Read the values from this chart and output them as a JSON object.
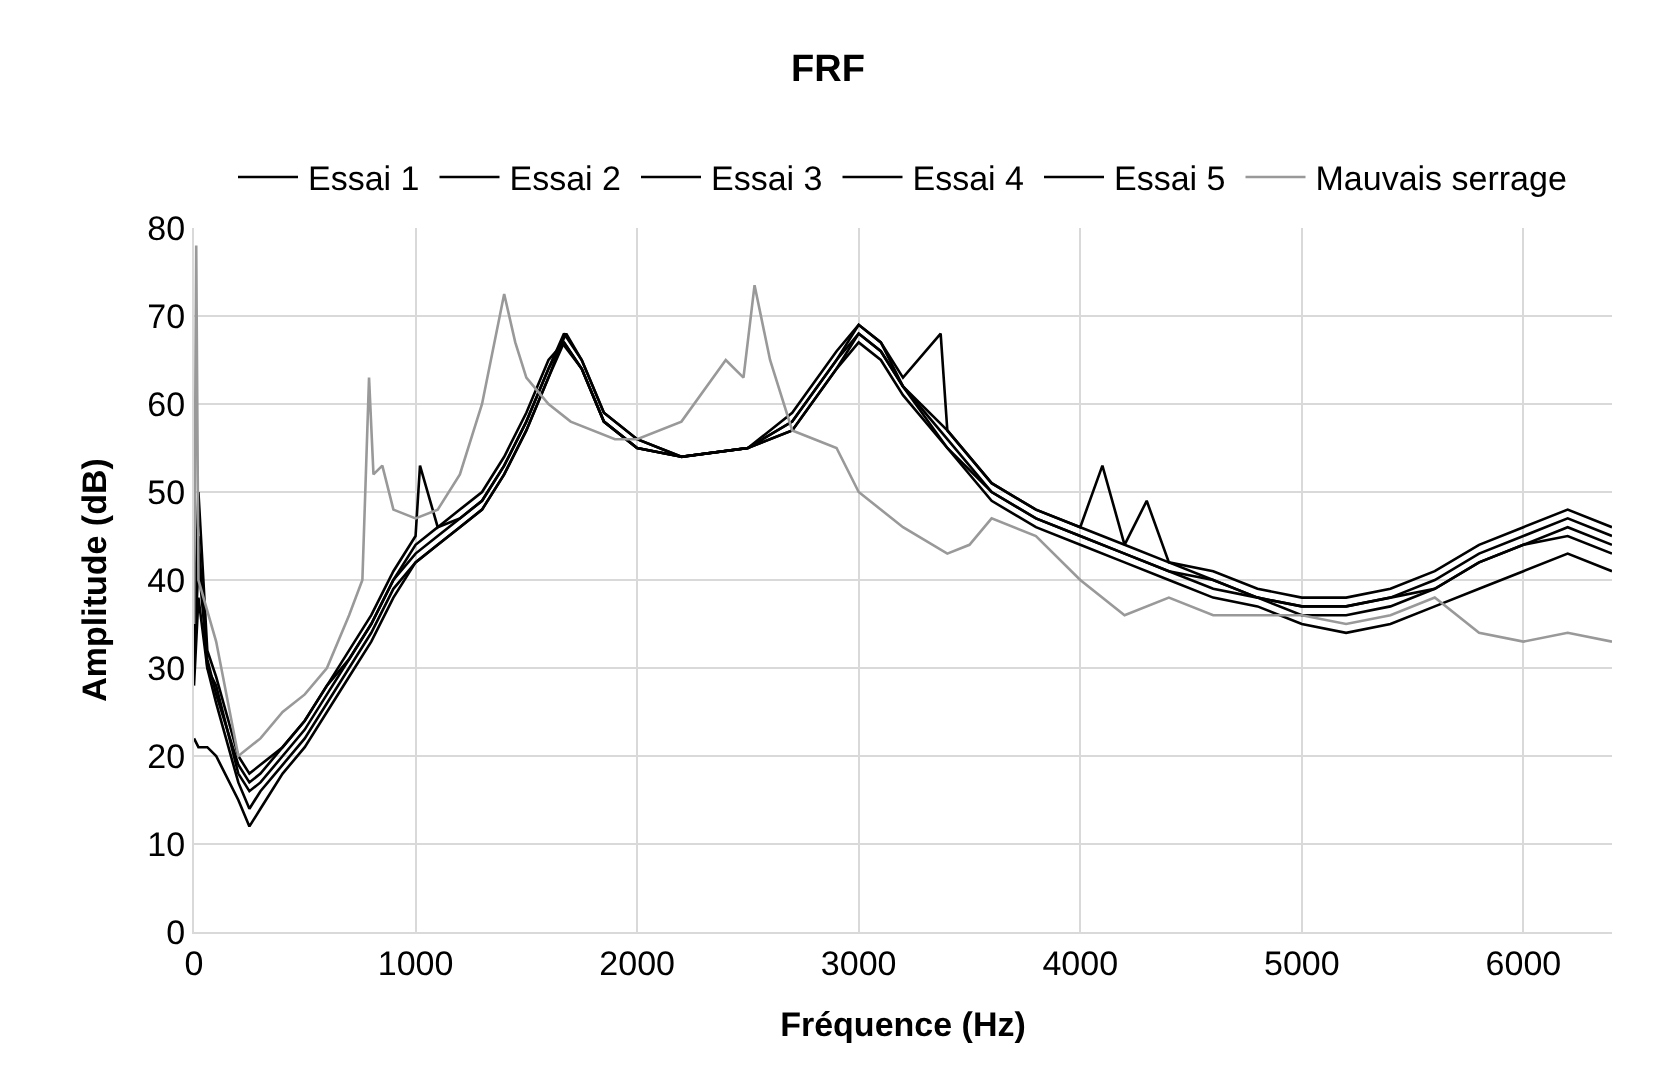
{
  "chart_data": {
    "type": "line",
    "title": "FRF",
    "xlabel": "Fréquence (Hz)",
    "ylabel": "Amplitude (dB)",
    "xlim": [
      0,
      6400
    ],
    "xticks": [
      0,
      1000,
      2000,
      3000,
      4000,
      5000,
      6000
    ],
    "ylim": [
      0,
      80
    ],
    "yticks": [
      0,
      10,
      20,
      30,
      40,
      50,
      60,
      70,
      80
    ],
    "grid": true,
    "legend": "top",
    "marker": "none",
    "line_style": "solid",
    "series": [
      {
        "name": "Essai 1",
        "color": "#000000",
        "x": [
          0,
          20,
          60,
          100,
          200,
          250,
          300,
          400,
          500,
          600,
          700,
          800,
          900,
          1000,
          1100,
          1200,
          1300,
          1400,
          1500,
          1600,
          1680,
          1750,
          1850,
          2000,
          2200,
          2500,
          2700,
          2900,
          3000,
          3100,
          3200,
          3400,
          3600,
          3800,
          4000,
          4200,
          4400,
          4600,
          4800,
          5000,
          5200,
          5400,
          5600,
          5800,
          6000,
          6200,
          6400
        ],
        "values": [
          35,
          45,
          30,
          28,
          18,
          16,
          17,
          20,
          23,
          27,
          31,
          35,
          40,
          43,
          45,
          47,
          49,
          53,
          58,
          64,
          68,
          65,
          59,
          56,
          54,
          55,
          58,
          65,
          68,
          66,
          62,
          56,
          50,
          47,
          45,
          43,
          41,
          40,
          38,
          37,
          37,
          38,
          40,
          43,
          45,
          47,
          45
        ]
      },
      {
        "name": "Essai 2",
        "color": "#000000",
        "x": [
          0,
          20,
          60,
          100,
          200,
          250,
          300,
          400,
          500,
          600,
          700,
          800,
          900,
          1000,
          1020,
          1100,
          1200,
          1300,
          1400,
          1500,
          1600,
          1670,
          1750,
          1850,
          2000,
          2200,
          2500,
          2700,
          2900,
          3000,
          3100,
          3200,
          3370,
          3400,
          3600,
          3800,
          4000,
          4100,
          4200,
          4300,
          4400,
          4600,
          4800,
          5000,
          5200,
          5400,
          5600,
          5800,
          6000,
          6200,
          6400
        ],
        "values": [
          33,
          50,
          32,
          29,
          20,
          18,
          19,
          21,
          24,
          28,
          32,
          36,
          41,
          45,
          53,
          46,
          48,
          50,
          54,
          59,
          65,
          67,
          64,
          58,
          55,
          54,
          55,
          59,
          66,
          69,
          67,
          63,
          68,
          57,
          51,
          48,
          46,
          53,
          44,
          49,
          42,
          41,
          39,
          38,
          38,
          39,
          41,
          44,
          46,
          48,
          46
        ]
      },
      {
        "name": "Essai 3",
        "color": "#000000",
        "x": [
          0,
          20,
          60,
          100,
          200,
          250,
          300,
          400,
          500,
          600,
          700,
          800,
          900,
          1000,
          1100,
          1200,
          1300,
          1400,
          1500,
          1600,
          1660,
          1750,
          1850,
          2000,
          2200,
          2500,
          2700,
          2900,
          3000,
          3100,
          3200,
          3400,
          3600,
          3800,
          4000,
          4200,
          4400,
          4600,
          4800,
          5000,
          5200,
          5400,
          5600,
          5800,
          6000,
          6200,
          6400
        ],
        "values": [
          22,
          21,
          21,
          20,
          15,
          12,
          14,
          18,
          21,
          25,
          29,
          33,
          38,
          42,
          44,
          46,
          48,
          52,
          57,
          63,
          67,
          64,
          58,
          55,
          54,
          55,
          57,
          64,
          67,
          65,
          61,
          55,
          49,
          46,
          44,
          42,
          40,
          38,
          37,
          35,
          34,
          35,
          37,
          39,
          41,
          43,
          41
        ]
      },
      {
        "name": "Essai 4",
        "color": "#000000",
        "x": [
          0,
          20,
          60,
          100,
          200,
          250,
          300,
          400,
          500,
          600,
          700,
          800,
          900,
          1000,
          1100,
          1200,
          1300,
          1400,
          1500,
          1600,
          1670,
          1750,
          1850,
          2000,
          2200,
          2500,
          2700,
          2900,
          3000,
          3100,
          3200,
          3400,
          3600,
          3800,
          4000,
          4200,
          4400,
          4600,
          4800,
          5000,
          5200,
          5400,
          5600,
          5800,
          6000,
          6200,
          6400
        ],
        "values": [
          30,
          42,
          31,
          27,
          19,
          17,
          18,
          21,
          24,
          28,
          31,
          35,
          40,
          44,
          46,
          47,
          49,
          53,
          58,
          64,
          68,
          65,
          59,
          56,
          54,
          55,
          58,
          65,
          69,
          67,
          62,
          57,
          51,
          48,
          46,
          44,
          42,
          40,
          38,
          37,
          37,
          38,
          39,
          42,
          44,
          45,
          43
        ]
      },
      {
        "name": "Essai 5",
        "color": "#000000",
        "x": [
          0,
          20,
          60,
          100,
          200,
          250,
          300,
          400,
          500,
          600,
          700,
          800,
          900,
          1000,
          1100,
          1200,
          1300,
          1400,
          1500,
          1600,
          1670,
          1750,
          1850,
          2000,
          2200,
          2500,
          2700,
          2900,
          3000,
          3100,
          3200,
          3400,
          3600,
          3800,
          4000,
          4200,
          4400,
          4600,
          4800,
          5000,
          5200,
          5400,
          5600,
          5800,
          6000,
          6200,
          6400
        ],
        "values": [
          28,
          38,
          30,
          26,
          17,
          14,
          16,
          19,
          22,
          26,
          30,
          34,
          39,
          42,
          44,
          46,
          48,
          52,
          57,
          63,
          67,
          64,
          58,
          55,
          54,
          55,
          57,
          64,
          68,
          66,
          62,
          55,
          50,
          47,
          45,
          43,
          41,
          39,
          38,
          36,
          36,
          37,
          39,
          42,
          44,
          46,
          44
        ]
      },
      {
        "name": "Mauvais serrage",
        "color": "#999999",
        "x": [
          0,
          10,
          20,
          100,
          200,
          300,
          400,
          500,
          600,
          700,
          760,
          790,
          810,
          850,
          900,
          1000,
          1100,
          1200,
          1300,
          1400,
          1450,
          1500,
          1600,
          1700,
          1900,
          2000,
          2200,
          2400,
          2480,
          2530,
          2600,
          2700,
          2800,
          2900,
          3000,
          3200,
          3400,
          3500,
          3600,
          3800,
          4000,
          4200,
          4400,
          4600,
          4800,
          5000,
          5200,
          5400,
          5600,
          5800,
          6000,
          6200,
          6400
        ],
        "values": [
          35,
          78,
          40,
          33,
          20,
          22,
          25,
          27,
          30,
          36,
          40,
          63,
          52,
          53,
          48,
          47,
          48,
          52,
          60,
          72.5,
          67,
          63,
          60,
          58,
          56,
          56,
          58,
          65,
          63,
          73.5,
          65,
          57,
          56,
          55,
          50,
          46,
          43,
          44,
          47,
          45,
          40,
          36,
          38,
          36,
          36,
          36,
          35,
          36,
          38,
          34,
          33,
          34,
          33
        ]
      }
    ]
  }
}
